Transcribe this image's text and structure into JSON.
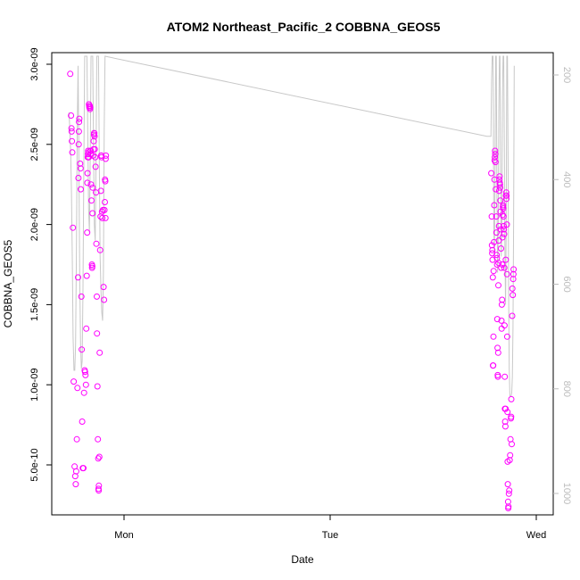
{
  "chart_data": {
    "type": "scatter",
    "title": "ATOM2 Northeast_Pacific_2 COBBNA_GEOS5",
    "xlabel": "Date",
    "ylabel": "COBBNA_GEOS5",
    "x_ticks": [
      {
        "label": "Mon",
        "value": 1.0
      },
      {
        "label": "Tue",
        "value": 2.0
      },
      {
        "label": "Wed",
        "value": 3.0
      }
    ],
    "x_range": [
      0.64,
      3.08
    ],
    "y_range": [
      1.9e-10,
      3.05e-09
    ],
    "y_ticks": [
      {
        "label": "5.0e-10",
        "value": 5e-10
      },
      {
        "label": "1.0e-09",
        "value": 1e-09
      },
      {
        "label": "1.5e-09",
        "value": 1.5e-09
      },
      {
        "label": "2.0e-09",
        "value": 2e-09
      },
      {
        "label": "2.5e-09",
        "value": 2.5e-09
      },
      {
        "label": "3.0e-09",
        "value": 3e-09
      }
    ],
    "y2_range": [
      1030,
      175
    ],
    "y2_ticks": [
      {
        "label": "200",
        "value": 200
      },
      {
        "label": "400",
        "value": 400
      },
      {
        "label": "600",
        "value": 600
      },
      {
        "label": "800",
        "value": 800
      },
      {
        "label": "1000",
        "value": 1000
      }
    ],
    "colors": {
      "points": "#ff00ff",
      "line": "#c8c8c8",
      "y2_ticks": "#bdbdbd"
    },
    "grid": false,
    "series": [
      {
        "type": "scatter",
        "points": [
          [
            0.739,
            2.94e-09
          ],
          [
            0.743,
            2.68e-09
          ],
          [
            0.745,
            2.6e-09
          ],
          [
            0.746,
            2.58e-09
          ],
          [
            0.747,
            2.52e-09
          ],
          [
            0.749,
            2.45e-09
          ],
          [
            0.752,
            1.98e-09
          ],
          [
            0.756,
            1.02e-09
          ],
          [
            0.76,
            4.9e-10
          ],
          [
            0.763,
            4.3e-10
          ],
          [
            0.766,
            3.8e-10
          ],
          [
            0.768,
            4.6e-10
          ],
          [
            0.771,
            6.6e-10
          ],
          [
            0.774,
            9.8e-10
          ],
          [
            0.777,
            1.67e-09
          ],
          [
            0.779,
            2.29e-09
          ],
          [
            0.78,
            2.5e-09
          ],
          [
            0.781,
            2.58e-09
          ],
          [
            0.782,
            2.64e-09
          ],
          [
            0.783,
            2.66e-09
          ],
          [
            0.787,
            2.38e-09
          ],
          [
            0.789,
            2.35e-09
          ],
          [
            0.79,
            2.22e-09
          ],
          [
            0.793,
            1.55e-09
          ],
          [
            0.795,
            1.22e-09
          ],
          [
            0.797,
            7.7e-10
          ],
          [
            0.8,
            4.8e-10
          ],
          [
            0.803,
            4.8e-10
          ],
          [
            0.806,
            9.5e-10
          ],
          [
            0.809,
            1.09e-09
          ],
          [
            0.811,
            1.08e-09
          ],
          [
            0.813,
            1.06e-09
          ],
          [
            0.815,
            1e-09
          ],
          [
            0.817,
            1.35e-09
          ],
          [
            0.819,
            1.68e-09
          ],
          [
            0.821,
            1.95e-09
          ],
          [
            0.822,
            2.26e-09
          ],
          [
            0.823,
            2.32e-09
          ],
          [
            0.824,
            2.42e-09
          ],
          [
            0.825,
            2.44e-09
          ],
          [
            0.826,
            2.46e-09
          ],
          [
            0.827,
            2.45e-09
          ],
          [
            0.828,
            2.42e-09
          ],
          [
            0.829,
            2.42e-09
          ],
          [
            0.83,
            2.75e-09
          ],
          [
            0.831,
            2.74e-09
          ],
          [
            0.832,
            2.73e-09
          ],
          [
            0.833,
            2.73e-09
          ],
          [
            0.834,
            2.74e-09
          ],
          [
            0.835,
            2.72e-09
          ],
          [
            0.836,
            2.73e-09
          ],
          [
            0.837,
            2.44e-09
          ],
          [
            0.838,
            2.46e-09
          ],
          [
            0.84,
            2.25e-09
          ],
          [
            0.842,
            2.15e-09
          ],
          [
            0.844,
            1.75e-09
          ],
          [
            0.845,
            1.73e-09
          ],
          [
            0.846,
            1.74e-09
          ],
          [
            0.847,
            2.07e-09
          ],
          [
            0.848,
            2.23e-09
          ],
          [
            0.85,
            2.43e-09
          ],
          [
            0.852,
            2.47e-09
          ],
          [
            0.853,
            2.52e-09
          ],
          [
            0.854,
            2.56e-09
          ],
          [
            0.855,
            2.57e-09
          ],
          [
            0.856,
            2.57e-09
          ],
          [
            0.857,
            2.55e-09
          ],
          [
            0.858,
            2.47e-09
          ],
          [
            0.86,
            2.42e-09
          ],
          [
            0.862,
            2.36e-09
          ],
          [
            0.864,
            2.2e-09
          ],
          [
            0.866,
            1.88e-09
          ],
          [
            0.868,
            1.55e-09
          ],
          [
            0.869,
            1.32e-09
          ],
          [
            0.871,
            9.9e-10
          ],
          [
            0.873,
            6.6e-10
          ],
          [
            0.875,
            5.4e-10
          ],
          [
            0.876,
            3.5e-10
          ],
          [
            0.877,
            3.4e-10
          ],
          [
            0.878,
            3.7e-10
          ],
          [
            0.88,
            5.5e-10
          ],
          [
            0.882,
            1.2e-09
          ],
          [
            0.884,
            1.84e-09
          ],
          [
            0.886,
            2.05e-09
          ],
          [
            0.888,
            2.21e-09
          ],
          [
            0.889,
            2.43e-09
          ],
          [
            0.89,
            2.43e-09
          ],
          [
            0.891,
            2.42e-09
          ],
          [
            0.893,
            2.08e-09
          ],
          [
            0.895,
            2.04e-09
          ],
          [
            0.898,
            2.09e-09
          ],
          [
            0.901,
            1.61e-09
          ],
          [
            0.903,
            1.53e-09
          ],
          [
            0.905,
            2.09e-09
          ],
          [
            0.907,
            2.14e-09
          ],
          [
            0.908,
            2.28e-09
          ],
          [
            0.909,
            2.27e-09
          ],
          [
            0.91,
            2.04e-09
          ],
          [
            0.911,
            2.41e-09
          ],
          [
            0.912,
            2.43e-09
          ],
          [
            2.782,
            2.32e-09
          ],
          [
            2.784,
            2.05e-09
          ],
          [
            2.785,
            1.87e-09
          ],
          [
            2.786,
            1.82e-09
          ],
          [
            2.787,
            1.84e-09
          ],
          [
            2.788,
            1.78e-09
          ],
          [
            2.789,
            1.67e-09
          ],
          [
            2.79,
            1.12e-09
          ],
          [
            2.791,
            1.12e-09
          ],
          [
            2.792,
            1.3e-09
          ],
          [
            2.793,
            1.71e-09
          ],
          [
            2.795,
            1.89e-09
          ],
          [
            2.796,
            2.12e-09
          ],
          [
            2.797,
            2.28e-09
          ],
          [
            2.798,
            2.4e-09
          ],
          [
            2.799,
            2.42e-09
          ],
          [
            2.8,
            2.46e-09
          ],
          [
            2.801,
            2.44e-09
          ],
          [
            2.802,
            2.39e-09
          ],
          [
            2.804,
            2.22e-09
          ],
          [
            2.806,
            2.05e-09
          ],
          [
            2.807,
            1.95e-09
          ],
          [
            2.808,
            1.81e-09
          ],
          [
            2.809,
            1.79e-09
          ],
          [
            2.81,
            1.75e-09
          ],
          [
            2.811,
            1.41e-09
          ],
          [
            2.812,
            1.23e-09
          ],
          [
            2.813,
            1.06e-09
          ],
          [
            2.814,
            1.05e-09
          ],
          [
            2.815,
            1.2e-09
          ],
          [
            2.816,
            1.62e-09
          ],
          [
            2.817,
            1.76e-09
          ],
          [
            2.818,
            1.9e-09
          ],
          [
            2.819,
            1.99e-09
          ],
          [
            2.82,
            2.21e-09
          ],
          [
            2.821,
            2.28e-09
          ],
          [
            2.822,
            2.3e-09
          ],
          [
            2.823,
            2.26e-09
          ],
          [
            2.824,
            2.25e-09
          ],
          [
            2.825,
            2.23e-09
          ],
          [
            2.826,
            2.15e-09
          ],
          [
            2.827,
            2.08e-09
          ],
          [
            2.828,
            1.97e-09
          ],
          [
            2.829,
            1.85e-09
          ],
          [
            2.83,
            1.73e-09
          ],
          [
            2.831,
            1.4e-09
          ],
          [
            2.832,
            1.35e-09
          ],
          [
            2.833,
            1.5e-09
          ],
          [
            2.834,
            1.53e-09
          ],
          [
            2.835,
            1.75e-09
          ],
          [
            2.836,
            1.92e-09
          ],
          [
            2.837,
            2.06e-09
          ],
          [
            2.838,
            2.11e-09
          ],
          [
            2.839,
            2.12e-09
          ],
          [
            2.84,
            2.1e-09
          ],
          [
            2.841,
            2.05e-09
          ],
          [
            2.842,
            1.99e-09
          ],
          [
            2.843,
            1.97e-09
          ],
          [
            2.844,
            1.94e-09
          ],
          [
            2.845,
            1.73e-09
          ],
          [
            2.846,
            1.37e-09
          ],
          [
            2.847,
            1.05e-09
          ],
          [
            2.848,
            8.5e-10
          ],
          [
            2.849,
            7.7e-10
          ],
          [
            2.85,
            7.4e-10
          ],
          [
            2.851,
            8.5e-10
          ],
          [
            2.852,
            1.78e-09
          ],
          [
            2.853,
            2.18e-09
          ],
          [
            2.854,
            2.2e-09
          ],
          [
            2.855,
            2.16e-09
          ],
          [
            2.856,
            2.18e-09
          ],
          [
            2.857,
            2e-09
          ],
          [
            2.858,
            1.69e-09
          ],
          [
            2.859,
            1.3e-09
          ],
          [
            2.86,
            8.3e-10
          ],
          [
            2.861,
            5.2e-10
          ],
          [
            2.862,
            3.8e-10
          ],
          [
            2.863,
            2.7e-10
          ],
          [
            2.864,
            2.3e-10
          ],
          [
            2.865,
            2.4e-10
          ],
          [
            2.867,
            3.2e-10
          ],
          [
            2.869,
            3.4e-10
          ],
          [
            2.871,
            5.3e-10
          ],
          [
            2.873,
            5.6e-10
          ],
          [
            2.875,
            6.6e-10
          ],
          [
            2.877,
            7.9e-10
          ],
          [
            2.878,
            8e-10
          ],
          [
            2.879,
            9.1e-10
          ],
          [
            2.881,
            6.3e-10
          ],
          [
            2.883,
            1.43e-09
          ],
          [
            2.884,
            1.6e-09
          ],
          [
            2.886,
            1.56e-09
          ],
          [
            2.888,
            1.66e-09
          ],
          [
            2.889,
            1.69e-09
          ],
          [
            2.89,
            1.72e-09
          ]
        ]
      },
      {
        "type": "line",
        "points": [
          [
            0.733,
            2.7e-09
          ],
          [
            0.737,
            2.6e-09
          ],
          [
            0.741,
            2.45e-09
          ],
          [
            0.745,
            2.2e-09
          ],
          [
            0.749,
            1.8e-09
          ],
          [
            0.753,
            1.3e-09
          ],
          [
            0.757,
            1.09e-09
          ],
          [
            0.761,
            1.09e-09
          ],
          [
            0.765,
            1.25e-09
          ],
          [
            0.769,
            1.8e-09
          ],
          [
            0.773,
            2.6e-09
          ],
          [
            0.777,
            2.99e-09
          ],
          [
            0.781,
            2.4e-09
          ],
          [
            0.785,
            1.7e-09
          ],
          [
            0.789,
            1.25e-09
          ],
          [
            0.793,
            1.1e-09
          ],
          [
            0.797,
            1.15e-09
          ],
          [
            0.801,
            1.6e-09
          ],
          [
            0.805,
            2.4e-09
          ],
          [
            0.809,
            3.05e-09
          ],
          [
            0.82,
            3.05e-09
          ],
          [
            0.824,
            2.6e-09
          ],
          [
            0.828,
            2.1e-09
          ],
          [
            0.832,
            1.95e-09
          ],
          [
            0.836,
            2.4e-09
          ],
          [
            0.84,
            3.05e-09
          ],
          [
            0.848,
            3.05e-09
          ],
          [
            0.852,
            2.5e-09
          ],
          [
            0.856,
            2e-09
          ],
          [
            0.86,
            1.9e-09
          ],
          [
            0.864,
            2.4e-09
          ],
          [
            0.868,
            3.05e-09
          ],
          [
            0.876,
            3.05e-09
          ],
          [
            0.88,
            2.4e-09
          ],
          [
            0.884,
            1.8e-09
          ],
          [
            0.888,
            1.6e-09
          ],
          [
            0.892,
            1.45e-09
          ],
          [
            0.896,
            1.4e-09
          ],
          [
            0.9,
            1.7e-09
          ],
          [
            0.904,
            2.6e-09
          ],
          [
            0.908,
            3.05e-09
          ],
          [
            2.76,
            2.55e-09
          ],
          [
            2.78,
            2.55e-09
          ],
          [
            2.783,
            2.9e-09
          ],
          [
            2.786,
            3.05e-09
          ],
          [
            2.79,
            3.05e-09
          ],
          [
            2.792,
            2.6e-09
          ],
          [
            2.794,
            2e-09
          ],
          [
            2.797,
            1.8e-09
          ],
          [
            2.8,
            2.3e-09
          ],
          [
            2.803,
            3.05e-09
          ],
          [
            2.806,
            3.05e-09
          ],
          [
            2.809,
            2.2e-09
          ],
          [
            2.812,
            1.7e-09
          ],
          [
            2.815,
            1.9e-09
          ],
          [
            2.818,
            2.7e-09
          ],
          [
            2.821,
            3.05e-09
          ],
          [
            2.824,
            3.05e-09
          ],
          [
            2.827,
            2.3e-09
          ],
          [
            2.83,
            1.8e-09
          ],
          [
            2.833,
            2e-09
          ],
          [
            2.836,
            2.8e-09
          ],
          [
            2.839,
            3.05e-09
          ],
          [
            2.842,
            3.05e-09
          ],
          [
            2.845,
            2.5e-09
          ],
          [
            2.848,
            1.8e-09
          ],
          [
            2.851,
            1.5e-09
          ],
          [
            2.854,
            2e-09
          ],
          [
            2.857,
            3.05e-09
          ],
          [
            2.86,
            3.05e-09
          ],
          [
            2.863,
            2.4e-09
          ],
          [
            2.866,
            1.6e-09
          ],
          [
            2.869,
            1.1e-09
          ],
          [
            2.872,
            9.3e-10
          ],
          [
            2.875,
            9.3e-10
          ],
          [
            2.878,
            9.3e-10
          ],
          [
            2.881,
            9.5e-10
          ],
          [
            2.884,
            1.05e-09
          ],
          [
            2.887,
            1.35e-09
          ],
          [
            2.89,
            2e-09
          ],
          [
            2.893,
            2.99e-09
          ]
        ]
      }
    ]
  }
}
